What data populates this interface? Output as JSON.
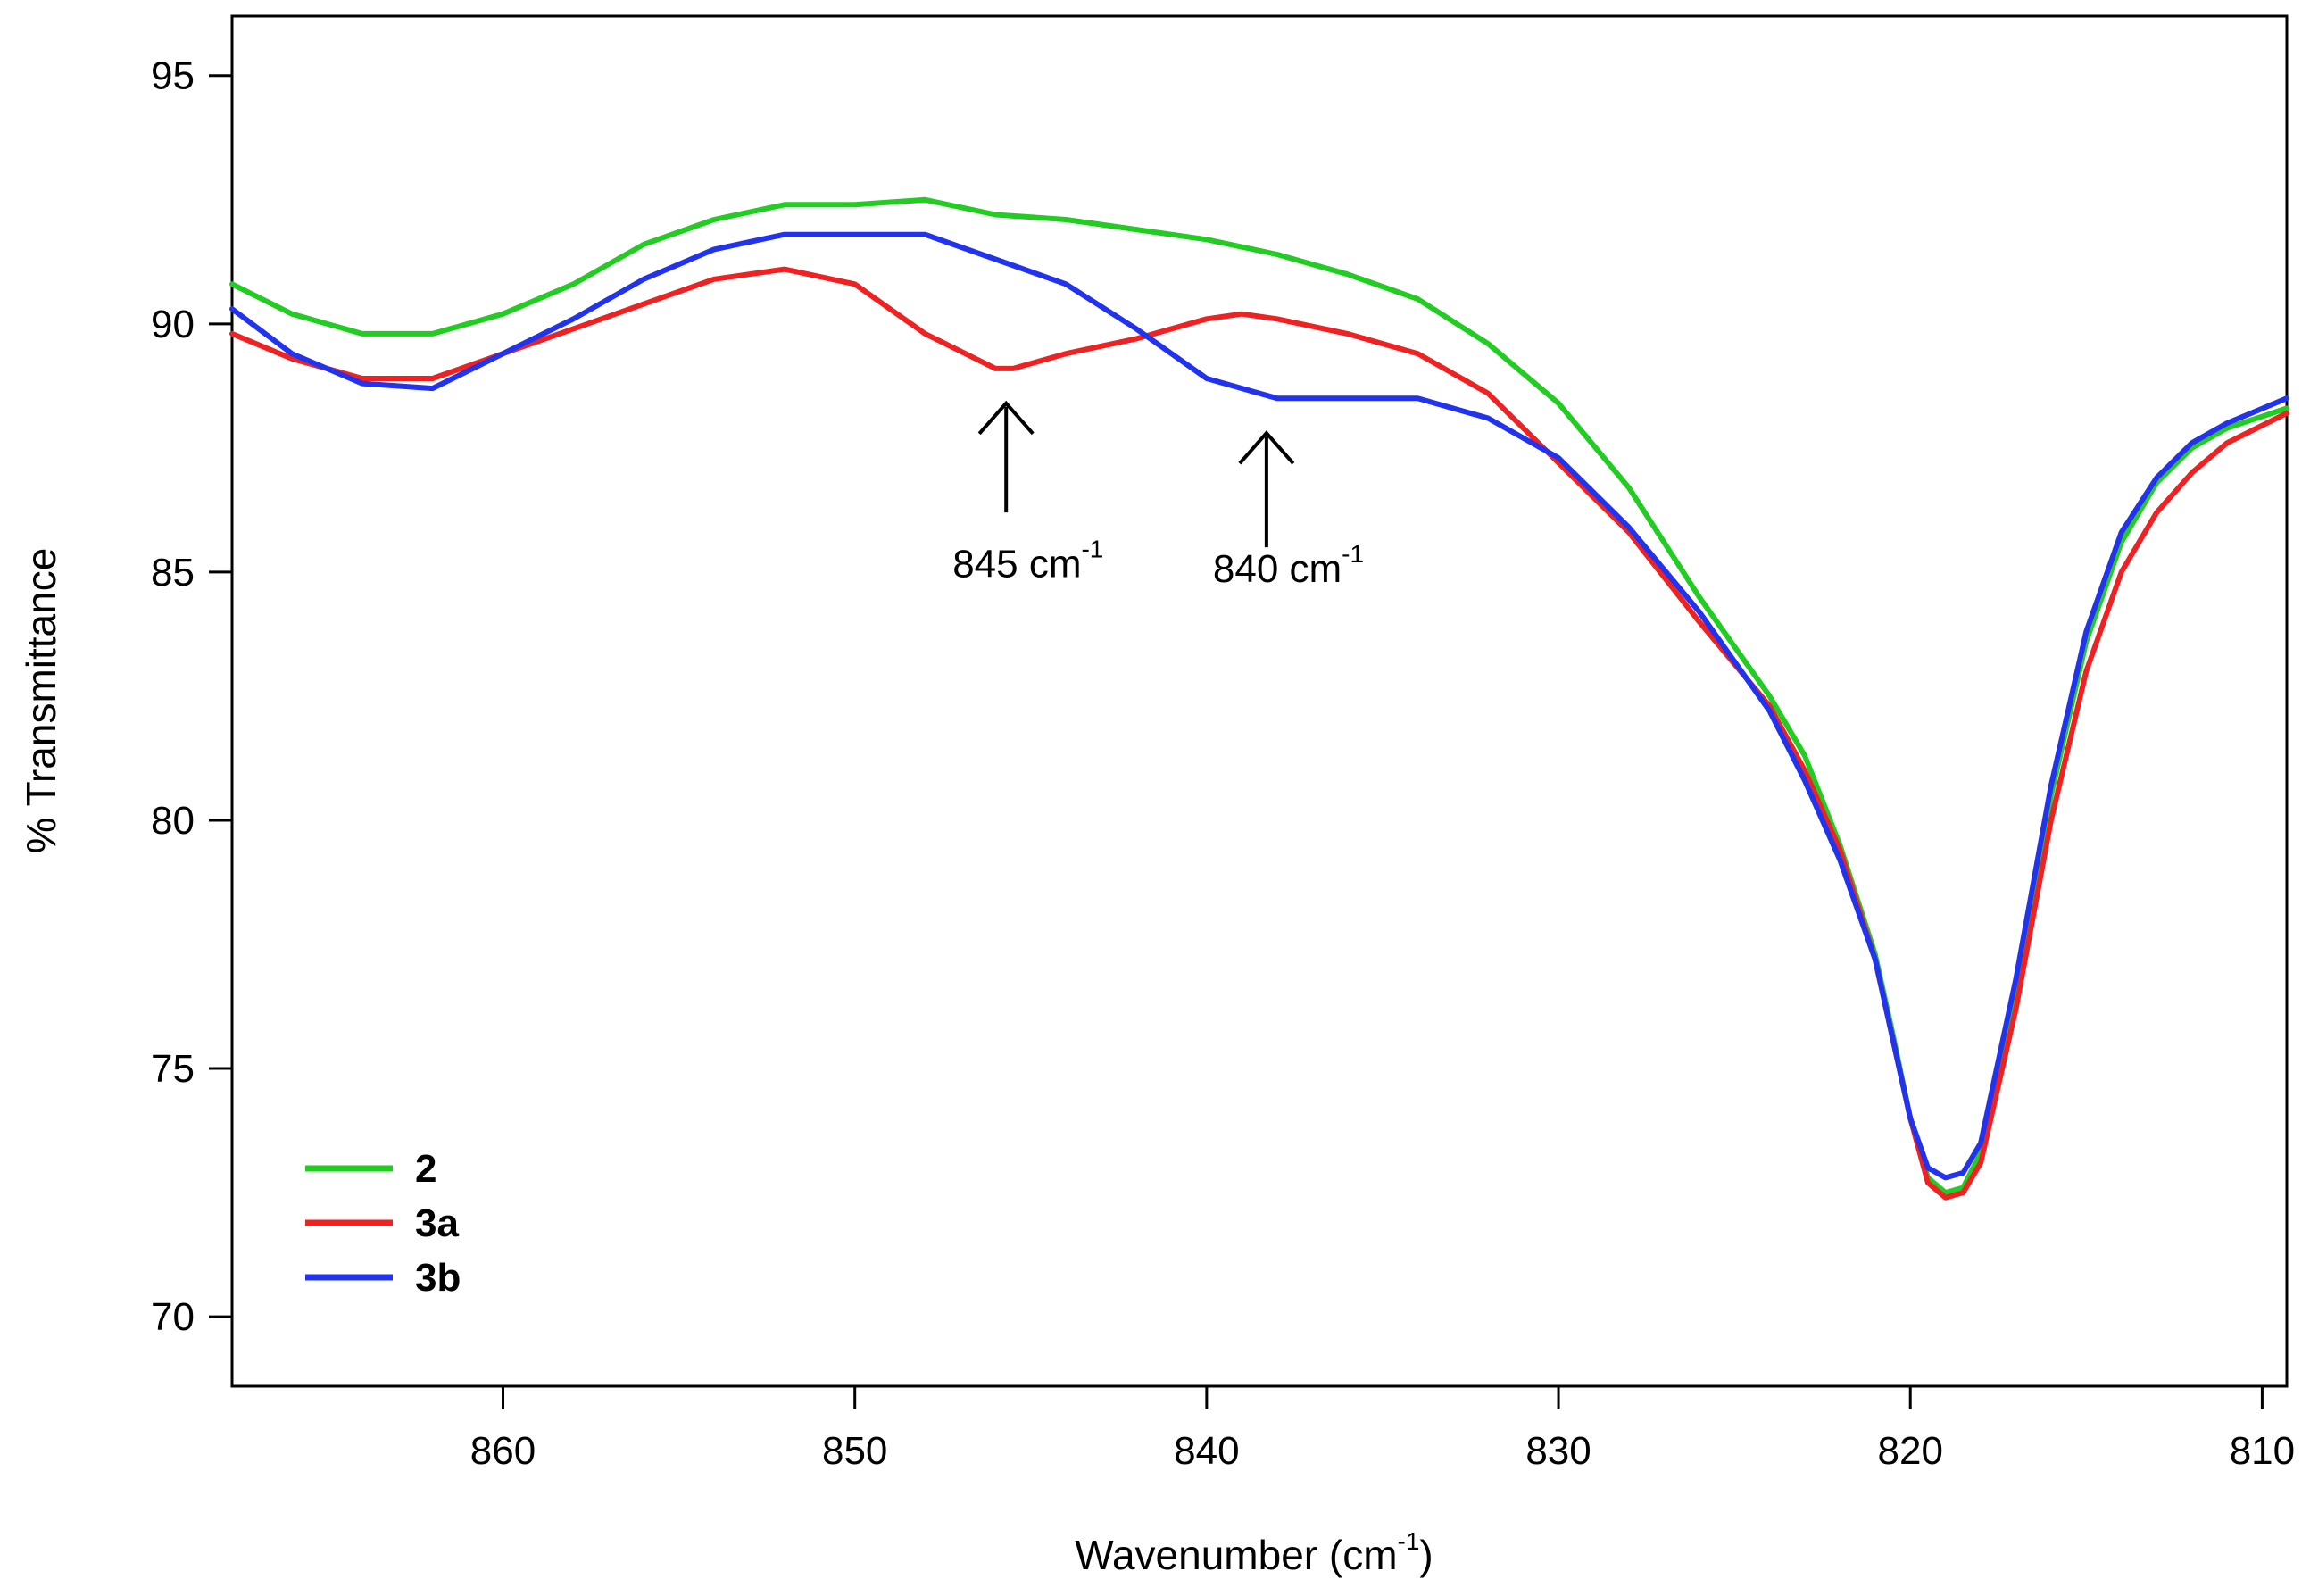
{
  "chart_data": {
    "type": "line",
    "title": "",
    "xlabel": "Wavenumber (cm",
    "xlabel_sup": "-1",
    "xlabel_suffix": ")",
    "ylabel": "% Transmittance",
    "xlim": [
      867.7,
      809.3
    ],
    "ylim": [
      68.6,
      96.2
    ],
    "x_reversed": true,
    "grid": false,
    "x_ticks": [
      860,
      850,
      840,
      830,
      820,
      810
    ],
    "y_ticks": [
      70,
      75,
      80,
      85,
      90,
      95
    ],
    "legend_position": "bottom-left",
    "series": [
      {
        "name": "2",
        "color": "#22cc22",
        "x": [
          867.7,
          866,
          864,
          862,
          860,
          858,
          856,
          854,
          852,
          850,
          848,
          846,
          844,
          842,
          840,
          838,
          836,
          834,
          832,
          830,
          828,
          826,
          824,
          823,
          822,
          821,
          820.5,
          820,
          819.5,
          819,
          818.5,
          818,
          817,
          816,
          815,
          814,
          813,
          812,
          811,
          809.3
        ],
        "y": [
          90.8,
          90.2,
          89.8,
          89.8,
          90.2,
          90.8,
          91.6,
          92.1,
          92.4,
          92.4,
          92.5,
          92.2,
          92.1,
          91.9,
          91.7,
          91.4,
          91.0,
          90.5,
          89.6,
          88.4,
          86.7,
          84.5,
          82.5,
          81.3,
          79.5,
          77.3,
          75.7,
          74.0,
          72.8,
          72.5,
          72.6,
          73.3,
          76.6,
          80.5,
          83.6,
          85.6,
          86.8,
          87.5,
          87.9,
          88.3
        ]
      },
      {
        "name": "3a",
        "color": "#ee2222",
        "x": [
          867.7,
          866,
          864,
          862,
          860,
          858,
          856,
          854,
          852,
          850,
          848,
          846,
          845.5,
          844,
          842,
          840,
          839,
          838,
          836,
          834,
          832,
          830,
          828,
          826,
          824,
          823,
          822,
          821,
          820.5,
          820,
          819.5,
          819,
          818.5,
          818,
          817,
          816,
          815,
          814,
          813,
          812,
          811,
          809.3
        ],
        "y": [
          89.8,
          89.3,
          88.9,
          88.9,
          89.4,
          89.9,
          90.4,
          90.9,
          91.1,
          90.8,
          89.8,
          89.1,
          89.1,
          89.4,
          89.7,
          90.1,
          90.2,
          90.1,
          89.8,
          89.4,
          88.6,
          87.2,
          85.8,
          84.0,
          82.3,
          81.0,
          79.4,
          77.2,
          75.6,
          74.0,
          72.7,
          72.4,
          72.5,
          73.1,
          76.2,
          80.0,
          83.0,
          85.0,
          86.2,
          87.0,
          87.6,
          88.2
        ]
      },
      {
        "name": "3b",
        "color": "#2233ee",
        "x": [
          867.7,
          866,
          864,
          862,
          860,
          858,
          856,
          854,
          852,
          850,
          848,
          846,
          844,
          842,
          840,
          838,
          836,
          834,
          832,
          830,
          828,
          826,
          824,
          823,
          822,
          821,
          820.5,
          820,
          819.5,
          819,
          818.5,
          818,
          817,
          816,
          815,
          814,
          813,
          812,
          811,
          809.3
        ],
        "y": [
          90.3,
          89.4,
          88.8,
          88.7,
          89.4,
          90.1,
          90.9,
          91.5,
          91.8,
          91.8,
          91.8,
          91.3,
          90.8,
          89.9,
          88.9,
          88.5,
          88.5,
          88.5,
          88.1,
          87.3,
          85.9,
          84.2,
          82.2,
          80.8,
          79.2,
          77.2,
          75.6,
          74.0,
          73.0,
          72.8,
          72.9,
          73.5,
          76.8,
          80.7,
          83.8,
          85.8,
          86.9,
          87.6,
          88.0,
          88.5
        ]
      }
    ],
    "annotations": [
      {
        "label": "845 cm",
        "sup": "-1",
        "x": 845.7,
        "arrow_top": 88.4,
        "arrow_bottom": 86.2,
        "label_y": 84.9
      },
      {
        "label": "840 cm",
        "sup": "-1",
        "x": 838.3,
        "arrow_top": 87.8,
        "arrow_bottom": 85.5,
        "label_y": 84.8
      }
    ]
  }
}
